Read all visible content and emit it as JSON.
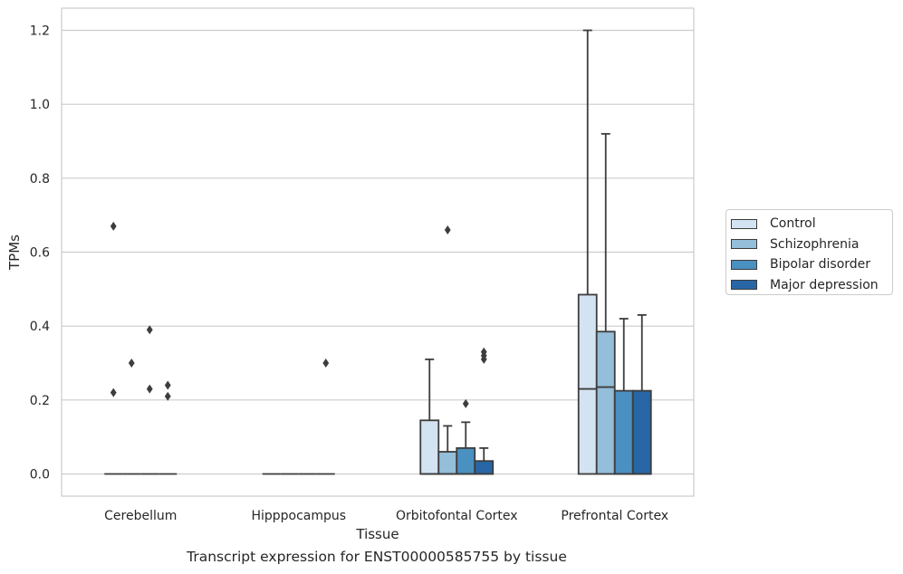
{
  "chart_data": {
    "type": "box",
    "title": "",
    "caption": "Transcript expression for ENST00000585755 by tissue",
    "xlabel": "Tissue",
    "ylabel": "TPMs",
    "ylim": [
      -0.06,
      1.26
    ],
    "yticks": [
      "0.0",
      "0.2",
      "0.4",
      "0.6",
      "0.8",
      "1.0",
      "1.2"
    ],
    "grid": "horizontal",
    "legend_position": "outside-right",
    "categories": [
      "Cerebellum",
      "Hipppocampus",
      "Orbitofontal Cortex",
      "Prefrontal Cortex"
    ],
    "series": [
      {
        "name": "Control",
        "color": "#d4e3f2",
        "boxes": [
          {
            "q1": 0,
            "median": 0,
            "q3": 0,
            "whisker_low": 0,
            "whisker_high": 0,
            "outliers": [
              0.67,
              0.22
            ]
          },
          {
            "q1": 0,
            "median": 0,
            "q3": 0,
            "whisker_low": 0,
            "whisker_high": 0,
            "outliers": []
          },
          {
            "q1": 0,
            "median": 0,
            "q3": 0.145,
            "whisker_low": 0,
            "whisker_high": 0.31,
            "outliers": []
          },
          {
            "q1": 0,
            "median": 0.23,
            "q3": 0.485,
            "whisker_low": 0,
            "whisker_high": 1.2,
            "outliers": []
          }
        ]
      },
      {
        "name": "Schizophrenia",
        "color": "#94bed9",
        "boxes": [
          {
            "q1": 0,
            "median": 0,
            "q3": 0,
            "whisker_low": 0,
            "whisker_high": 0,
            "outliers": [
              0.3
            ]
          },
          {
            "q1": 0,
            "median": 0,
            "q3": 0,
            "whisker_low": 0,
            "whisker_high": 0,
            "outliers": []
          },
          {
            "q1": 0,
            "median": 0,
            "q3": 0.06,
            "whisker_low": 0,
            "whisker_high": 0.13,
            "outliers": [
              0.66
            ]
          },
          {
            "q1": 0,
            "median": 0.235,
            "q3": 0.385,
            "whisker_low": 0,
            "whisker_high": 0.92,
            "outliers": []
          }
        ]
      },
      {
        "name": "Bipolar disorder",
        "color": "#4a90c0",
        "boxes": [
          {
            "q1": 0,
            "median": 0,
            "q3": 0,
            "whisker_low": 0,
            "whisker_high": 0,
            "outliers": [
              0.39,
              0.23
            ]
          },
          {
            "q1": 0,
            "median": 0,
            "q3": 0,
            "whisker_low": 0,
            "whisker_high": 0,
            "outliers": []
          },
          {
            "q1": 0,
            "median": 0,
            "q3": 0.07,
            "whisker_low": 0,
            "whisker_high": 0.14,
            "outliers": [
              0.19
            ]
          },
          {
            "q1": 0,
            "median": 0,
            "q3": 0.225,
            "whisker_low": 0,
            "whisker_high": 0.42,
            "outliers": []
          }
        ]
      },
      {
        "name": "Major depression",
        "color": "#2866a6",
        "boxes": [
          {
            "q1": 0,
            "median": 0,
            "q3": 0,
            "whisker_low": 0,
            "whisker_high": 0,
            "outliers": [
              0.24,
              0.21
            ]
          },
          {
            "q1": 0,
            "median": 0,
            "q3": 0,
            "whisker_low": 0,
            "whisker_high": 0,
            "outliers": [
              0.3
            ]
          },
          {
            "q1": 0,
            "median": 0,
            "q3": 0.035,
            "whisker_low": 0,
            "whisker_high": 0.07,
            "outliers": [
              0.33,
              0.32,
              0.31
            ]
          },
          {
            "q1": 0,
            "median": 0,
            "q3": 0.225,
            "whisker_low": 0,
            "whisker_high": 0.43,
            "outliers": []
          }
        ]
      }
    ]
  }
}
